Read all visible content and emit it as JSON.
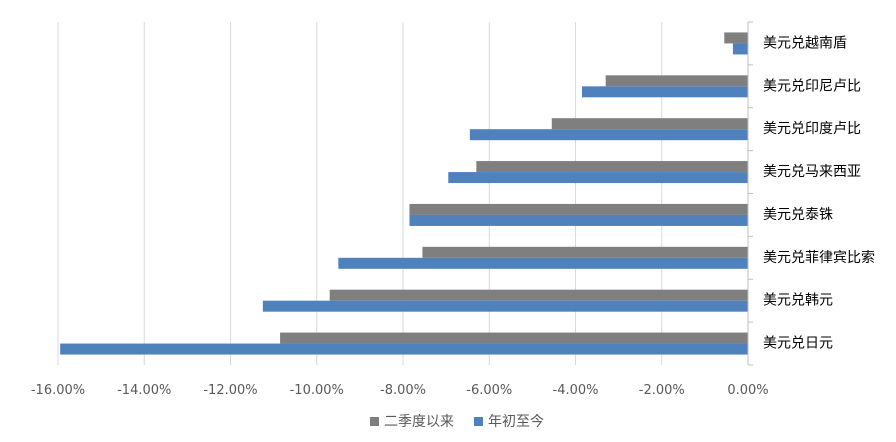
{
  "chart_data": {
    "type": "bar",
    "orientation": "horizontal",
    "categories": [
      "美元兑越南盾",
      "美元兑印尼卢比",
      "美元兑印度卢比",
      "美元兑马来西亚",
      "美元兑泰铢",
      "美元兑菲律宾比索",
      "美元兑韩元",
      "美元兑日元"
    ],
    "series": [
      {
        "name": "二季度以来",
        "color": "#7f7f7f",
        "values": [
          -0.55,
          -3.3,
          -4.55,
          -6.3,
          -7.85,
          -7.55,
          -9.7,
          -10.85
        ]
      },
      {
        "name": "年初至今",
        "color": "#4f81bd",
        "values": [
          -0.35,
          -3.85,
          -6.45,
          -6.95,
          -7.85,
          -9.5,
          -11.25,
          -15.95
        ]
      }
    ],
    "xlim": [
      -16,
      0
    ],
    "xticks": [
      -16,
      -14,
      -12,
      -10,
      -8,
      -6,
      -4,
      -2,
      0
    ],
    "xtick_labels": [
      "-16.00%",
      "-14.00%",
      "-12.00%",
      "-10.00%",
      "-8.00%",
      "-6.00%",
      "-4.00%",
      "-2.00%",
      "0.00%"
    ],
    "grid": true,
    "legend_position": "bottom",
    "title": "",
    "xlabel": "",
    "ylabel": ""
  }
}
